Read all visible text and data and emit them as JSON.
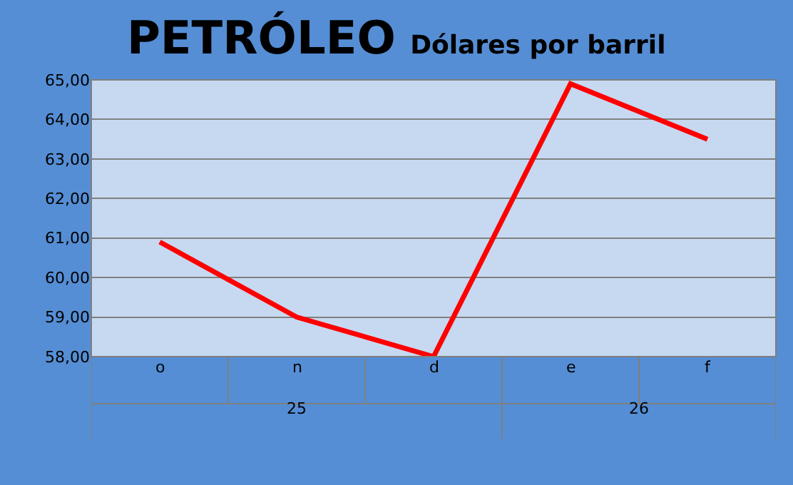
{
  "chart_data": {
    "type": "line",
    "title": "PETRÓLEO",
    "subtitle": "Dólares por barril",
    "categories": [
      "o",
      "n",
      "d",
      "e",
      "f"
    ],
    "series": [
      {
        "color": "#ff0000",
        "values": [
          60.9,
          59.0,
          58.0,
          64.9,
          63.5
        ]
      }
    ],
    "annotations": [
      "25",
      "26"
    ],
    "ylim": [
      58,
      65
    ],
    "yticks": [
      {
        "value": 58,
        "label": "58,00"
      },
      {
        "value": 59,
        "label": "59,00"
      },
      {
        "value": 60,
        "label": "60,00"
      },
      {
        "value": 61,
        "label": "61,00"
      },
      {
        "value": 62,
        "label": "62,00"
      },
      {
        "value": 63,
        "label": "63,00"
      },
      {
        "value": 64,
        "label": "64,00"
      },
      {
        "value": 65,
        "label": "65,00"
      }
    ],
    "grid": "y",
    "marker": "none",
    "line_style": "solid"
  }
}
